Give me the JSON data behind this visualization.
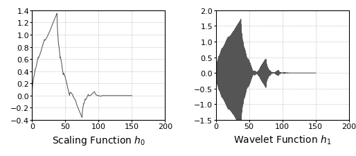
{
  "title_left": "Scaling Function $h_0$",
  "title_right": "Wavelet Function $h_1$",
  "xlim": [
    0,
    200
  ],
  "ylim_left": [
    -0.4,
    1.4
  ],
  "ylim_right": [
    -1.5,
    2.0
  ],
  "yticks_left": [
    -0.4,
    -0.2,
    0.0,
    0.2,
    0.4,
    0.6,
    0.8,
    1.0,
    1.2,
    1.4
  ],
  "yticks_right": [
    -1.5,
    -1.0,
    -0.5,
    0.0,
    0.5,
    1.0,
    1.5,
    2.0
  ],
  "xticks": [
    0,
    50,
    100,
    150,
    200
  ],
  "line_color": "#555555",
  "background_color": "#ffffff",
  "grid_color": "#aaaaaa",
  "title_fontsize": 10,
  "tick_fontsize": 8,
  "figure_width": 5.14,
  "figure_height": 2.26,
  "dpi": 100
}
